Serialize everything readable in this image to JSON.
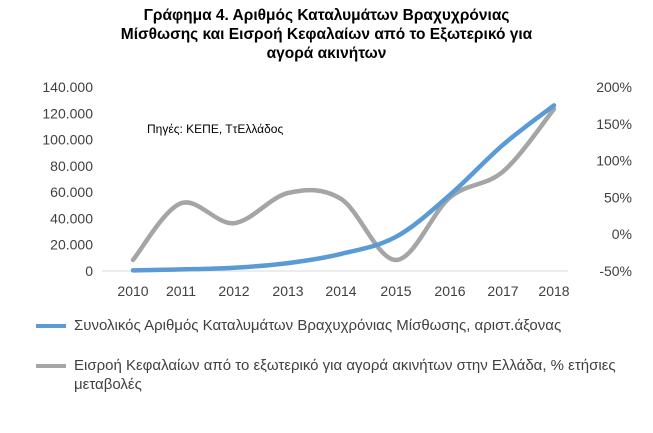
{
  "chart_data": {
    "type": "line",
    "title_lines": [
      "Γράφημα 4. Αριθμός Καταλυμάτων Βραχυχρόνιας",
      "Μίσθωσης και Εισροή Κεφαλαίων από το Εξωτερικό για",
      "αγορά ακινήτων"
    ],
    "annotation": "Πηγές: ΚΕΠΕ, ΤτΕλλάδος",
    "x": [
      "2010",
      "2011",
      "2012",
      "2013",
      "2014",
      "2015",
      "2016",
      "2017",
      "2018"
    ],
    "y_left": {
      "range": [
        0,
        140000
      ],
      "ticks": [
        "0",
        "20.000",
        "40.000",
        "60.000",
        "80.000",
        "100.000",
        "120.000",
        "140.000"
      ]
    },
    "y_right": {
      "range": [
        -50,
        200
      ],
      "ticks": [
        "-50%",
        "0%",
        "50%",
        "100%",
        "150%",
        "200%"
      ]
    },
    "series": [
      {
        "name": "Συνολικός Αριθμός Καταλυμάτων Βραχυχρόνιας Μίσθωσης, αριστ.άξονας",
        "axis": "left",
        "color": "#5b9bd5",
        "values": [
          500,
          1200,
          2500,
          6000,
          13000,
          26000,
          58000,
          96000,
          126000
        ]
      },
      {
        "name": "Εισροή Κεφαλαίων από το εξωτερικό για αγορά ακινήτων στην Ελλάδα, % ετήσιες μεταβολές",
        "axis": "right",
        "color": "#a5a5a5",
        "values": [
          -35,
          42,
          15,
          56,
          48,
          -35,
          50,
          85,
          170
        ]
      }
    ],
    "grid": false,
    "legend_position": "bottom"
  }
}
